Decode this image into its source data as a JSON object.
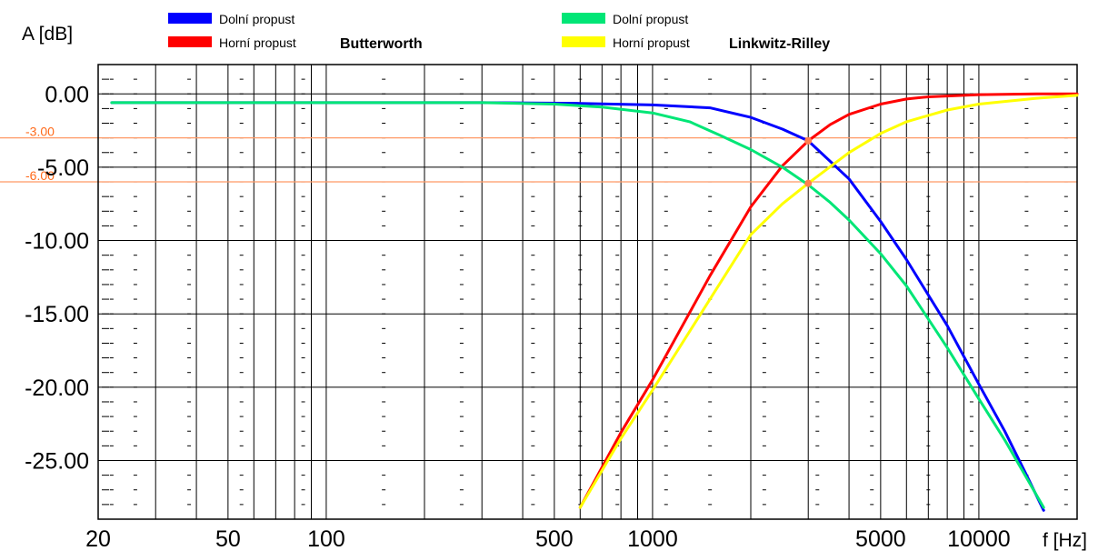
{
  "chart_data": {
    "type": "line",
    "x_scale": "log",
    "xlim": [
      20,
      20000
    ],
    "ylim": [
      -29,
      2
    ],
    "y_axis_title": "A [dB]",
    "x_axis_title": "f [Hz]",
    "y_ticks": [
      0,
      -5,
      -10,
      -15,
      -20,
      -25
    ],
    "y_tick_labels": [
      "0.00",
      "-5.00",
      "-10.00",
      "-15.00",
      "-20.00",
      "-25.00"
    ],
    "x_ticks": [
      20,
      50,
      100,
      500,
      1000,
      5000,
      10000
    ],
    "x_tick_labels": [
      "20",
      "50",
      "100",
      "500",
      "1000",
      "5000",
      "10000"
    ],
    "reference_lines": [
      {
        "value": -3,
        "label": "-3.00",
        "color": "#ff9966"
      },
      {
        "value": -6,
        "label": "-6.00",
        "color": "#ff9966"
      }
    ],
    "legend_groups": [
      {
        "title": "Butterworth",
        "entries": [
          {
            "label": "Dolní propust",
            "color": "#0000ff"
          },
          {
            "label": "Horní propust",
            "color": "#ff0000"
          }
        ]
      },
      {
        "title": "Linkwitz-Rilley",
        "entries": [
          {
            "label": "Dolní propust",
            "color": "#00e676"
          },
          {
            "label": "Horní propust",
            "color": "#ffff00"
          }
        ]
      }
    ],
    "series": [
      {
        "color": "#0000ff",
        "x": [
          22,
          100,
          300,
          600,
          1000,
          1500,
          2000,
          2500,
          3000,
          4000,
          5000,
          6000,
          8000,
          10000,
          12000,
          14000,
          15800
        ],
        "y": [
          -0.6,
          -0.6,
          -0.6,
          -0.65,
          -0.75,
          -0.95,
          -1.6,
          -2.4,
          -3.2,
          -5.8,
          -8.7,
          -11.3,
          -15.8,
          -19.8,
          -23.0,
          -26.0,
          -28.4
        ]
      },
      {
        "color": "#ff0000",
        "x": [
          600,
          800,
          1000,
          1200,
          1500,
          2000,
          2500,
          3000,
          3500,
          4000,
          5000,
          6000,
          7000,
          10000,
          15000,
          20000
        ],
        "y": [
          -28.2,
          -23.1,
          -19.5,
          -16.3,
          -12.4,
          -7.7,
          -4.9,
          -3.2,
          -2.1,
          -1.4,
          -0.7,
          -0.35,
          -0.2,
          -0.05,
          0.0,
          0.0
        ]
      },
      {
        "color": "#00e676",
        "x": [
          22,
          100,
          300,
          500,
          700,
          1000,
          1300,
          1600,
          2000,
          2500,
          3000,
          3500,
          4000,
          5000,
          6000,
          8000,
          10000,
          12000,
          15800
        ],
        "y": [
          -0.6,
          -0.6,
          -0.6,
          -0.7,
          -0.9,
          -1.3,
          -1.9,
          -2.8,
          -3.8,
          -5.0,
          -6.2,
          -7.4,
          -8.6,
          -10.9,
          -13.1,
          -17.3,
          -20.8,
          -23.6,
          -28.2
        ]
      },
      {
        "color": "#ffff00",
        "x": [
          600,
          800,
          1000,
          1500,
          2000,
          2500,
          3000,
          4000,
          5000,
          6000,
          8000,
          10000,
          15000,
          20000
        ],
        "y": [
          -28.2,
          -23.5,
          -20.2,
          -14.0,
          -9.6,
          -7.5,
          -6.1,
          -4.0,
          -2.7,
          -1.9,
          -1.1,
          -0.7,
          -0.3,
          -0.1
        ]
      }
    ],
    "intersection_points": [
      {
        "x": 3000,
        "y": -3.2,
        "color": "#ff7f50"
      },
      {
        "x": 3000,
        "y": -6.1,
        "color": "#ff7f50"
      }
    ]
  }
}
